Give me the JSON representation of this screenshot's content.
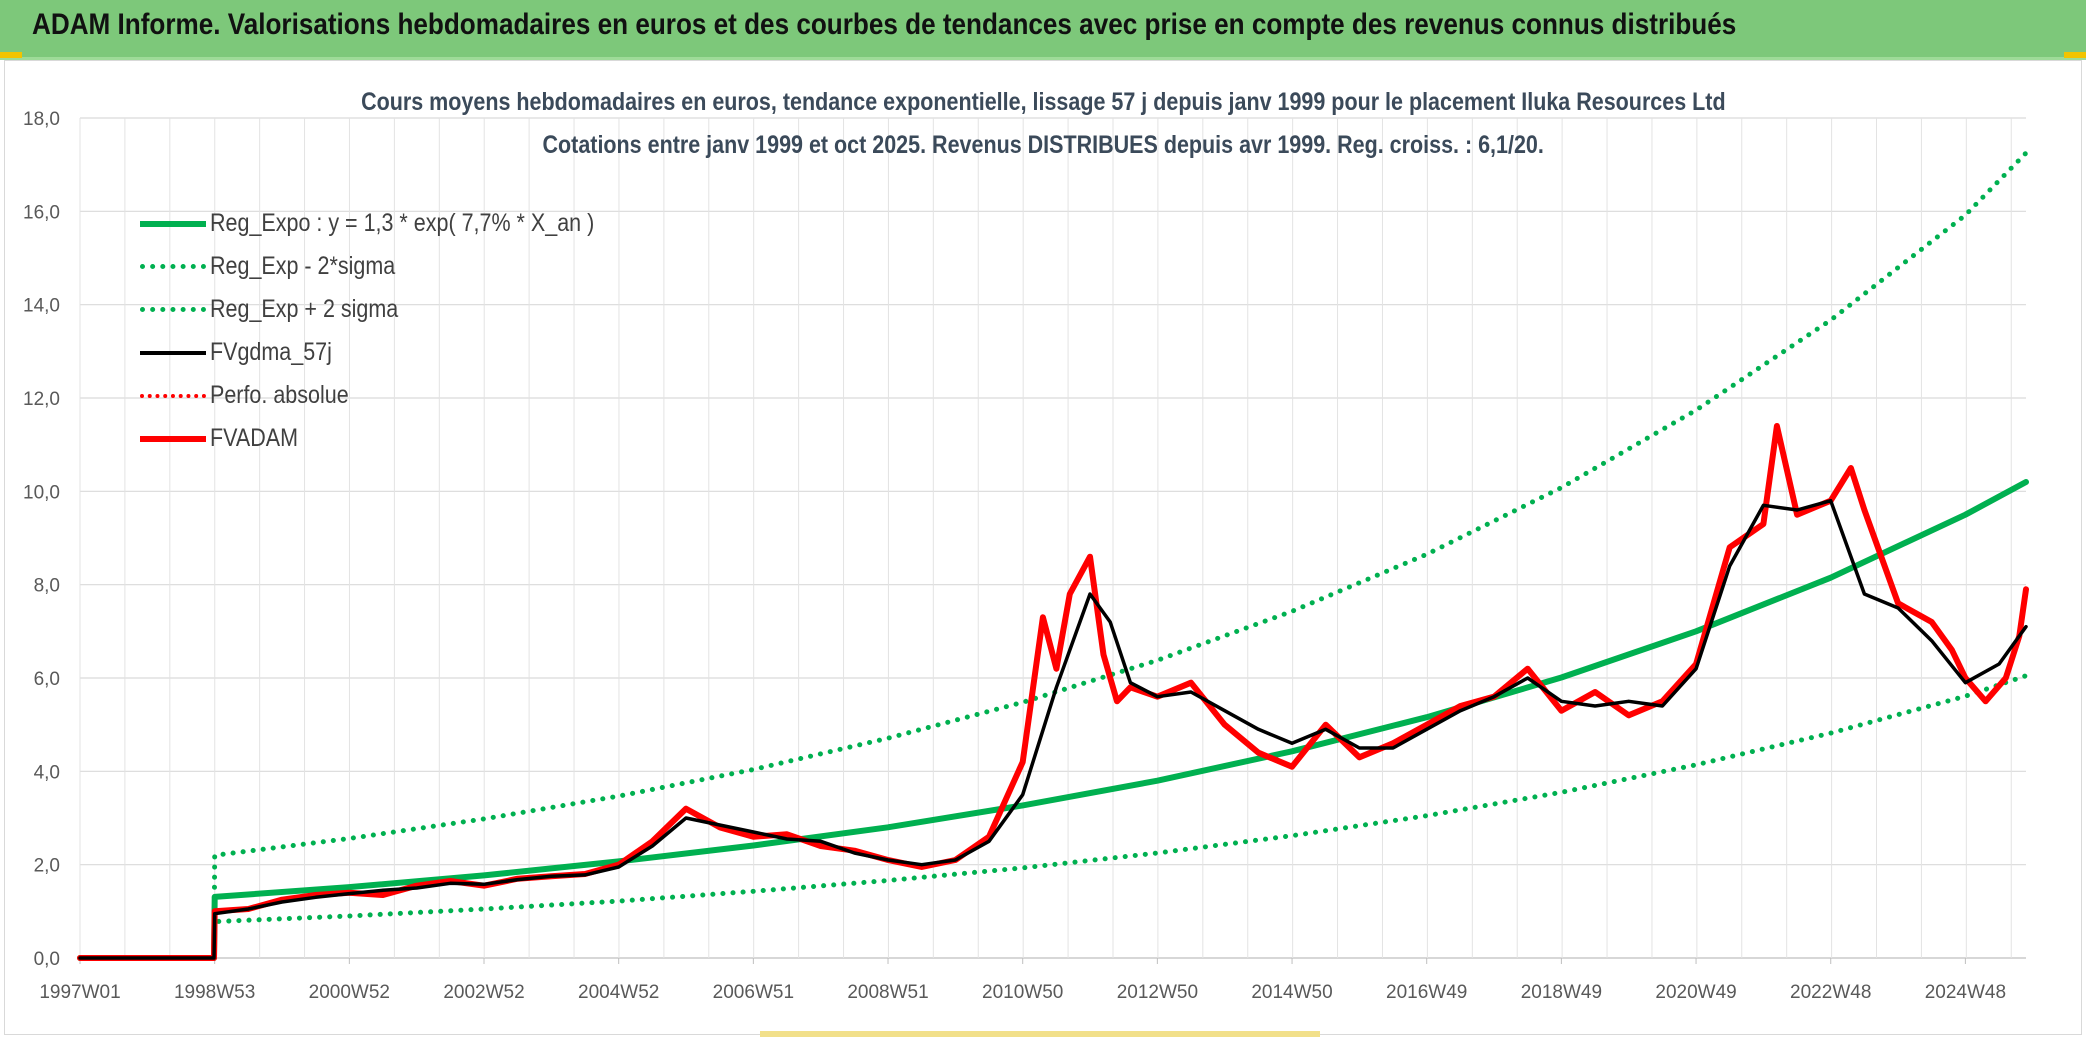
{
  "header": {
    "title": "ADAM Informe. Valorisations hebdomadaires en euros et des courbes de tendances avec prise en compte des revenus connus distribués"
  },
  "colors": {
    "header_bg": "#7dc87a",
    "green": "#00b050",
    "black": "#000000",
    "red": "#ff0000",
    "grid": "#d9d9d9"
  },
  "chart_data": {
    "type": "line",
    "title": "Cours moyens hebdomadaires en euros, tendance exponentielle, lissage 57 j depuis janv 1999 pour le placement Iluka Resources Ltd",
    "subtitle": "Cotations entre janv 1999 et oct 2025. Revenus DISTRIBUES depuis avr 1999. Reg. croiss. : 6,1/20.",
    "xlabel": "",
    "ylabel": "",
    "ylim": [
      0,
      18
    ],
    "yticks": [
      "0,0",
      "2,0",
      "4,0",
      "6,0",
      "8,0",
      "10,0",
      "12,0",
      "14,0",
      "16,0",
      "18,0"
    ],
    "xlim": [
      1997.0,
      2025.9
    ],
    "xticks": [
      {
        "label": "1997W01",
        "x": 1997.0
      },
      {
        "label": "1998W53",
        "x": 1999.0
      },
      {
        "label": "2000W52",
        "x": 2001.0
      },
      {
        "label": "2002W52",
        "x": 2003.0
      },
      {
        "label": "2004W52",
        "x": 2005.0
      },
      {
        "label": "2006W51",
        "x": 2007.0
      },
      {
        "label": "2008W51",
        "x": 2009.0
      },
      {
        "label": "2010W50",
        "x": 2011.0
      },
      {
        "label": "2012W50",
        "x": 2013.0
      },
      {
        "label": "2014W50",
        "x": 2015.0
      },
      {
        "label": "2016W49",
        "x": 2017.0
      },
      {
        "label": "2018W49",
        "x": 2019.0
      },
      {
        "label": "2020W49",
        "x": 2021.0
      },
      {
        "label": "2022W48",
        "x": 2023.0
      },
      {
        "label": "2024W48",
        "x": 2025.0
      }
    ],
    "grid": true,
    "legend_position": "top-left",
    "series": [
      {
        "name": "Reg_Expo : y = 1,3 * exp( 7,7% *  X_an )",
        "style": "solid-thick",
        "color": "#00b050",
        "x": [
          1997.0,
          1998.99,
          1999.0,
          2001,
          2003,
          2005,
          2007,
          2009,
          2011,
          2013,
          2015,
          2017,
          2019,
          2021,
          2023,
          2025,
          2025.9
        ],
        "values": [
          0,
          0,
          1.31,
          1.52,
          1.77,
          2.07,
          2.41,
          2.8,
          3.27,
          3.8,
          4.43,
          5.16,
          6.01,
          7.0,
          8.15,
          9.5,
          10.2
        ]
      },
      {
        "name": "Reg_Exp - 2*sigma",
        "style": "dotted",
        "color": "#00b050",
        "x": [
          1998.99,
          1999.0,
          2001,
          2003,
          2005,
          2007,
          2009,
          2011,
          2013,
          2015,
          2017,
          2019,
          2021,
          2023,
          2025,
          2025.9
        ],
        "values": [
          0,
          0.78,
          0.9,
          1.05,
          1.22,
          1.43,
          1.66,
          1.93,
          2.25,
          2.62,
          3.05,
          3.55,
          4.14,
          4.82,
          5.61,
          6.05
        ]
      },
      {
        "name": "Reg_Exp + 2 sigma",
        "style": "dotted",
        "color": "#00b050",
        "x": [
          1998.99,
          1999.0,
          2001,
          2003,
          2005,
          2007,
          2009,
          2011,
          2013,
          2015,
          2017,
          2019,
          2021,
          2023,
          2025,
          2025.9
        ],
        "values": [
          0,
          2.2,
          2.56,
          2.98,
          3.47,
          4.04,
          4.71,
          5.48,
          6.38,
          7.43,
          8.65,
          10.08,
          11.74,
          13.67,
          15.92,
          17.25
        ]
      },
      {
        "name": "FVgdma_57j",
        "style": "solid",
        "color": "#000000",
        "x": [
          1997.0,
          1998.99,
          1999.0,
          1999.5,
          2000.0,
          2000.5,
          2001.0,
          2001.5,
          2002.0,
          2002.5,
          2003.0,
          2003.5,
          2004.0,
          2004.5,
          2005.0,
          2005.5,
          2006.0,
          2006.5,
          2007.0,
          2007.5,
          2008.0,
          2008.5,
          2009.0,
          2009.5,
          2010.0,
          2010.5,
          2011.0,
          2011.5,
          2012.0,
          2012.3,
          2012.6,
          2013.0,
          2013.5,
          2014.0,
          2014.5,
          2015.0,
          2015.5,
          2016.0,
          2016.5,
          2017.0,
          2017.5,
          2018.0,
          2018.5,
          2019.0,
          2019.5,
          2020.0,
          2020.5,
          2021.0,
          2021.5,
          2022.0,
          2022.5,
          2023.0,
          2023.5,
          2024.0,
          2024.5,
          2025.0,
          2025.5,
          2025.9
        ],
        "values": [
          0,
          0,
          0.95,
          1.05,
          1.2,
          1.3,
          1.38,
          1.45,
          1.5,
          1.6,
          1.58,
          1.68,
          1.75,
          1.78,
          1.95,
          2.4,
          3.0,
          2.85,
          2.7,
          2.55,
          2.5,
          2.25,
          2.1,
          2.0,
          2.1,
          2.5,
          3.5,
          5.8,
          7.8,
          7.2,
          5.9,
          5.6,
          5.7,
          5.3,
          4.9,
          4.6,
          4.9,
          4.5,
          4.5,
          4.9,
          5.3,
          5.6,
          6.0,
          5.5,
          5.4,
          5.5,
          5.4,
          6.2,
          8.4,
          9.7,
          9.6,
          9.8,
          7.8,
          7.5,
          6.8,
          5.9,
          6.3,
          7.1
        ]
      },
      {
        "name": "Perfo. absolue",
        "style": "dotted",
        "color": "#ff0000",
        "x": [
          1997.0,
          1998.99,
          1999.0,
          1999.5,
          2000.0,
          2000.5,
          2001.0,
          2001.5,
          2002.0,
          2002.5,
          2003.0,
          2003.5,
          2004.0,
          2004.5,
          2005.0,
          2005.5,
          2006.0,
          2006.5,
          2007.0,
          2007.5,
          2008.0,
          2008.5,
          2009.0,
          2009.5,
          2010.0,
          2010.5,
          2011.0,
          2011.3,
          2011.5,
          2011.7,
          2012.0,
          2012.2,
          2012.4,
          2012.6,
          2013.0,
          2013.5,
          2014.0,
          2014.5,
          2015.0,
          2015.5,
          2016.0,
          2016.5,
          2017.0,
          2017.5,
          2018.0,
          2018.5,
          2019.0,
          2019.5,
          2020.0,
          2020.5,
          2021.0,
          2021.5,
          2022.0,
          2022.2,
          2022.5,
          2023.0,
          2023.3,
          2023.5,
          2024.0,
          2024.5,
          2024.8,
          2025.0,
          2025.3,
          2025.6,
          2025.8,
          2025.9
        ],
        "values": [
          0,
          0,
          1.0,
          1.05,
          1.25,
          1.35,
          1.4,
          1.35,
          1.55,
          1.65,
          1.55,
          1.7,
          1.75,
          1.8,
          2.0,
          2.5,
          3.2,
          2.8,
          2.6,
          2.65,
          2.4,
          2.3,
          2.1,
          1.95,
          2.1,
          2.6,
          4.2,
          7.3,
          6.2,
          7.8,
          8.6,
          6.5,
          5.5,
          5.8,
          5.6,
          5.9,
          5.0,
          4.4,
          4.1,
          5.0,
          4.3,
          4.6,
          5.0,
          5.4,
          5.6,
          6.2,
          5.3,
          5.7,
          5.2,
          5.5,
          6.3,
          8.8,
          9.3,
          11.4,
          9.5,
          9.8,
          10.5,
          9.6,
          7.6,
          7.2,
          6.6,
          6.0,
          5.5,
          6.0,
          6.9,
          7.9
        ]
      },
      {
        "name": "FVADAM",
        "style": "solid-thick",
        "color": "#ff0000",
        "x": [
          1997.0,
          1998.99,
          1999.0,
          1999.5,
          2000.0,
          2000.5,
          2001.0,
          2001.5,
          2002.0,
          2002.5,
          2003.0,
          2003.5,
          2004.0,
          2004.5,
          2005.0,
          2005.5,
          2006.0,
          2006.5,
          2007.0,
          2007.5,
          2008.0,
          2008.5,
          2009.0,
          2009.5,
          2010.0,
          2010.5,
          2011.0,
          2011.3,
          2011.5,
          2011.7,
          2012.0,
          2012.2,
          2012.4,
          2012.6,
          2013.0,
          2013.5,
          2014.0,
          2014.5,
          2015.0,
          2015.5,
          2016.0,
          2016.5,
          2017.0,
          2017.5,
          2018.0,
          2018.5,
          2019.0,
          2019.5,
          2020.0,
          2020.5,
          2021.0,
          2021.5,
          2022.0,
          2022.2,
          2022.5,
          2023.0,
          2023.3,
          2023.5,
          2024.0,
          2024.5,
          2024.8,
          2025.0,
          2025.3,
          2025.6,
          2025.8,
          2025.9
        ],
        "values": [
          0,
          0,
          1.0,
          1.05,
          1.25,
          1.35,
          1.4,
          1.35,
          1.55,
          1.65,
          1.55,
          1.7,
          1.75,
          1.8,
          2.0,
          2.5,
          3.2,
          2.8,
          2.6,
          2.65,
          2.4,
          2.3,
          2.1,
          1.95,
          2.1,
          2.6,
          4.2,
          7.3,
          6.2,
          7.8,
          8.6,
          6.5,
          5.5,
          5.8,
          5.6,
          5.9,
          5.0,
          4.4,
          4.1,
          5.0,
          4.3,
          4.6,
          5.0,
          5.4,
          5.6,
          6.2,
          5.3,
          5.7,
          5.2,
          5.5,
          6.3,
          8.8,
          9.3,
          11.4,
          9.5,
          9.8,
          10.5,
          9.6,
          7.6,
          7.2,
          6.6,
          6.0,
          5.5,
          6.0,
          6.9,
          7.9
        ]
      }
    ]
  }
}
